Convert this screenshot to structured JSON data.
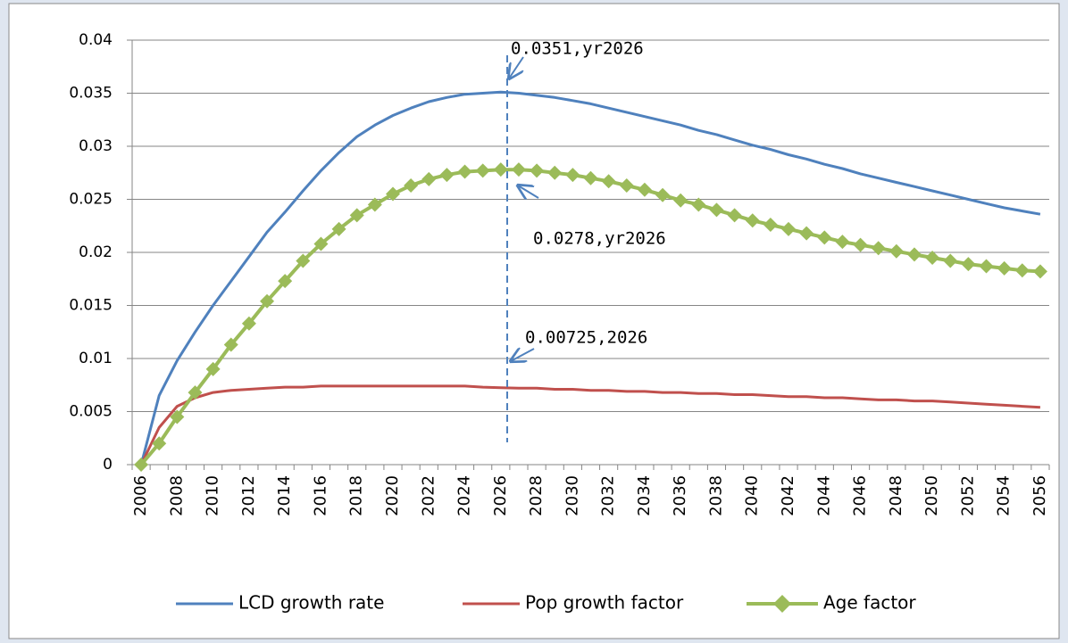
{
  "chart_data": {
    "type": "line",
    "categories": [
      "2006",
      null,
      "2008",
      null,
      "2010",
      null,
      "2012",
      null,
      "2014",
      null,
      "2016",
      null,
      "2018",
      null,
      "2020",
      null,
      "2022",
      null,
      "2024",
      null,
      "2026",
      null,
      "2028",
      null,
      "2030",
      null,
      "2032",
      null,
      "2034",
      null,
      "2036",
      null,
      "2038",
      null,
      "2040",
      null,
      "2042",
      null,
      "2044",
      null,
      "2046",
      null,
      "2048",
      null,
      "2050",
      null,
      "2052",
      null,
      "2054",
      null,
      "2056"
    ],
    "series": [
      {
        "name": "LCD growth rate",
        "color": "#4f81bd",
        "values": [
          0,
          0.0065,
          0.0098,
          0.0125,
          0.015,
          0.0173,
          0.0196,
          0.0219,
          0.0238,
          0.0258,
          0.0277,
          0.0294,
          0.0309,
          0.032,
          0.0329,
          0.0336,
          0.0342,
          0.0346,
          0.0349,
          0.035,
          0.0351,
          0.035,
          0.0348,
          0.0346,
          0.0343,
          0.034,
          0.0336,
          0.0332,
          0.0328,
          0.0324,
          0.032,
          0.0315,
          0.0311,
          0.0306,
          0.0301,
          0.0297,
          0.0292,
          0.0288,
          0.0283,
          0.0279,
          0.0274,
          0.027,
          0.0266,
          0.0262,
          0.0258,
          0.0254,
          0.025,
          0.0246,
          0.0242,
          0.0239,
          0.0236
        ]
      },
      {
        "name": "Pop growth factor",
        "color": "#c0504d",
        "values": [
          0,
          0.0035,
          0.0055,
          0.0063,
          0.0068,
          0.007,
          0.0071,
          0.0072,
          0.0073,
          0.0073,
          0.0074,
          0.0074,
          0.0074,
          0.0074,
          0.0074,
          0.0074,
          0.0074,
          0.0074,
          0.0074,
          0.0073,
          0.00725,
          0.0072,
          0.0072,
          0.0071,
          0.0071,
          0.007,
          0.007,
          0.0069,
          0.0069,
          0.0068,
          0.0068,
          0.0067,
          0.0067,
          0.0066,
          0.0066,
          0.0065,
          0.0064,
          0.0064,
          0.0063,
          0.0063,
          0.0062,
          0.0061,
          0.0061,
          0.006,
          0.006,
          0.0059,
          0.0058,
          0.0057,
          0.0056,
          0.0055,
          0.0054
        ]
      },
      {
        "name": "Age factor",
        "color": "#9bbb59",
        "marker": "diamond",
        "values": [
          0,
          0.002,
          0.0045,
          0.0068,
          0.009,
          0.0113,
          0.0133,
          0.0154,
          0.0173,
          0.0192,
          0.0208,
          0.0222,
          0.0235,
          0.0245,
          0.0255,
          0.0263,
          0.0269,
          0.0273,
          0.0276,
          0.0277,
          0.0278,
          0.0278,
          0.0277,
          0.0275,
          0.0273,
          0.027,
          0.0267,
          0.0263,
          0.0259,
          0.0254,
          0.0249,
          0.0245,
          0.024,
          0.0235,
          0.023,
          0.0226,
          0.0222,
          0.0218,
          0.0214,
          0.021,
          0.0207,
          0.0204,
          0.0201,
          0.0198,
          0.0195,
          0.0192,
          0.0189,
          0.0187,
          0.0185,
          0.0183,
          0.0182
        ]
      }
    ],
    "ylim": [
      0,
      0.04
    ],
    "yticks": [
      0,
      0.005,
      0.01,
      0.015,
      0.02,
      0.025,
      0.03,
      0.035,
      0.04
    ],
    "grid": true,
    "legend": "bottom",
    "annotations": [
      "0.0351,yr2026",
      "0.0278,yr2026",
      "0.00725,2026"
    ]
  }
}
